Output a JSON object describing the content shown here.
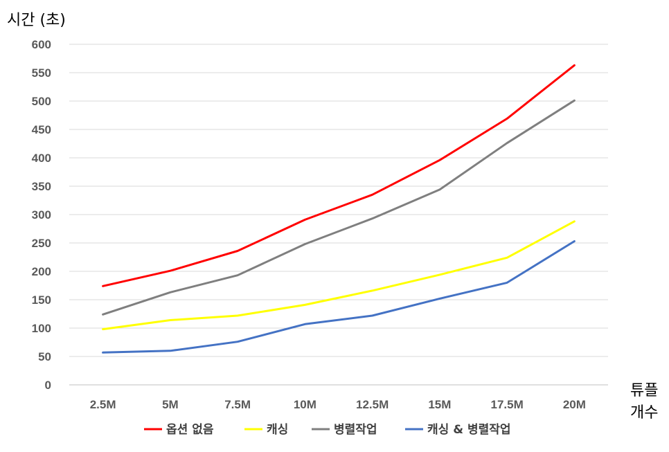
{
  "chart_data": {
    "type": "line",
    "ylabel": "시간 (초)",
    "xlabel_lines": [
      "튜플",
      "개수"
    ],
    "categories": [
      "2.5M",
      "5M",
      "7.5M",
      "10M",
      "12.5M",
      "15M",
      "17.5M",
      "20M"
    ],
    "ylim": [
      0,
      600
    ],
    "yticks": [
      0,
      50,
      100,
      150,
      200,
      250,
      300,
      350,
      400,
      450,
      500,
      550,
      600
    ],
    "grid": true,
    "legend_position": "bottom",
    "series": [
      {
        "name": "옵션 없음",
        "color": "#ff0000",
        "values": [
          174,
          201,
          236,
          291,
          335,
          396,
          469,
          563
        ]
      },
      {
        "name": "캐싱",
        "color": "#ffff00",
        "values": [
          98,
          114,
          122,
          141,
          166,
          194,
          224,
          288
        ]
      },
      {
        "name": "병렬작업",
        "color": "#7f7f7f",
        "values": [
          124,
          163,
          193,
          248,
          293,
          344,
          426,
          501
        ]
      },
      {
        "name": "캐싱 & 병렬작업",
        "color": "#4472c4",
        "values": [
          57,
          60,
          76,
          107,
          122,
          152,
          180,
          253
        ]
      }
    ]
  }
}
